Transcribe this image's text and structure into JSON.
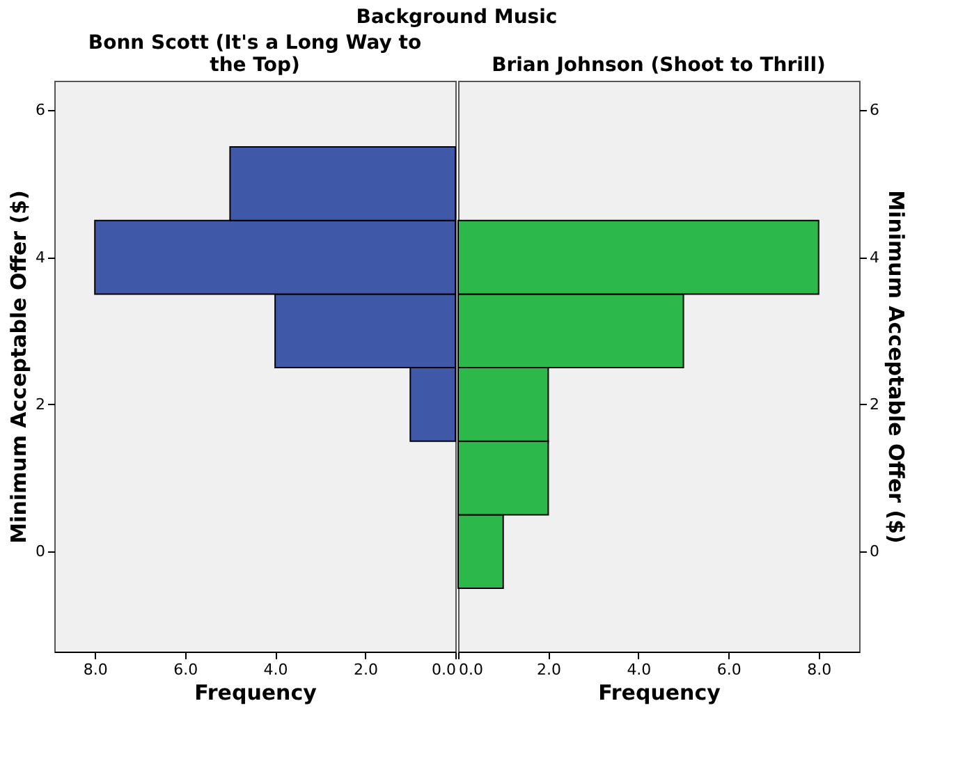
{
  "chart_data": [
    {
      "type": "other",
      "title": "Background Music"
    },
    {
      "type": "histogram",
      "orientation": "horizontal",
      "title": "Bonn Scott (It's a Long Way to the Top)",
      "xlabel": "Frequency",
      "ylabel": "Minimum Acceptable Offer ($)",
      "color": "#3f58a8",
      "bins": [
        1.5,
        2.5,
        3.5,
        4.5,
        5.5
      ],
      "values": [
        1,
        4,
        8,
        5
      ],
      "xlim": [
        8.9,
        0
      ],
      "xticks": [
        {
          "value": 8,
          "label": "8.0"
        },
        {
          "value": 6,
          "label": "6.0"
        },
        {
          "value": 4,
          "label": "4.0"
        },
        {
          "value": 2,
          "label": "2.0"
        },
        {
          "value": 0,
          "label": "0.0"
        }
      ],
      "ylim": [
        -1.36,
        6.4
      ],
      "yticks": [
        0,
        2,
        4,
        6
      ],
      "grid": false
    },
    {
      "type": "histogram",
      "orientation": "horizontal",
      "title": "Brian Johnson (Shoot to Thrill)",
      "xlabel": "Frequency",
      "ylabel": "Minimum Acceptable Offer ($)",
      "color": "#2db84a",
      "bins": [
        -0.5,
        0.5,
        1.5,
        2.5,
        3.5,
        4.5
      ],
      "values": [
        1,
        2,
        2,
        5,
        8
      ],
      "xlim": [
        0,
        8.9
      ],
      "xticks": [
        {
          "value": 0,
          "label": "0.0"
        },
        {
          "value": 2,
          "label": "2.0"
        },
        {
          "value": 4,
          "label": "4.0"
        },
        {
          "value": 6,
          "label": "6.0"
        },
        {
          "value": 8,
          "label": "8.0"
        }
      ],
      "ylim": [
        -1.36,
        6.4
      ],
      "yticks": [
        0,
        2,
        4,
        6
      ],
      "grid": false
    }
  ]
}
